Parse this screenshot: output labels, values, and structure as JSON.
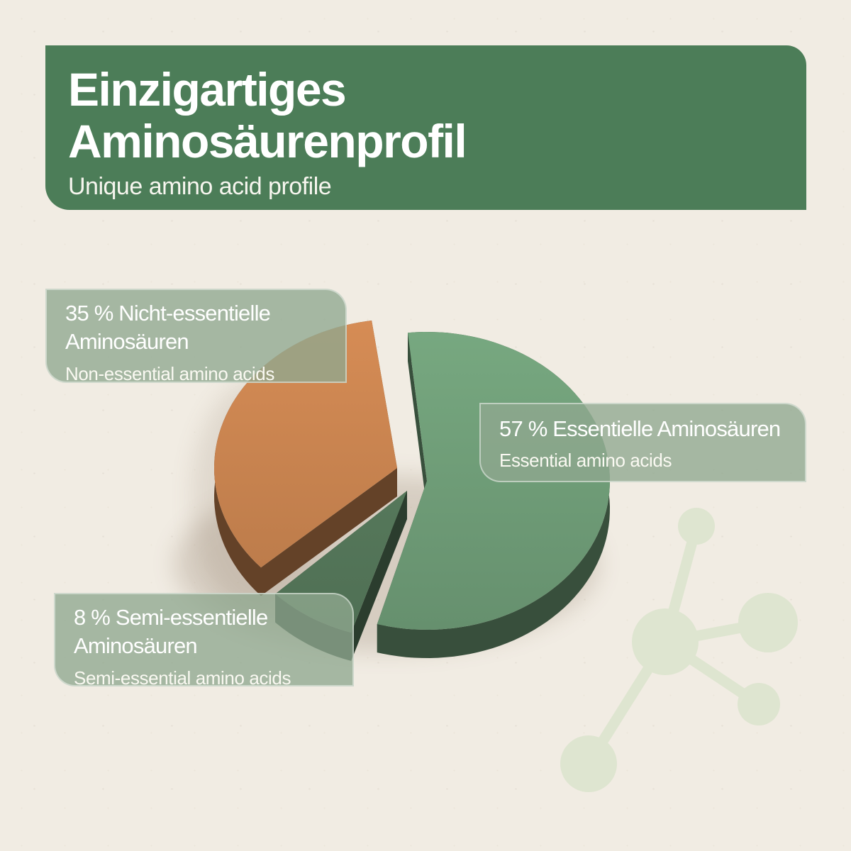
{
  "page": {
    "background_color": "#f1ece3",
    "accent_green": "#4c7d58",
    "label_box_color": "#93ab94",
    "watermark_color": "#dee5d0"
  },
  "header": {
    "title_line1": "Einzigartiges",
    "title_line2": "Aminosäurenprofil",
    "subtitle": "Unique amino acid profile"
  },
  "chart_data": {
    "type": "pie",
    "style": "3d-exploded",
    "title": "Einzigartiges Aminosäurenprofil / Unique amino acid profile",
    "unit": "%",
    "legend_position": "floating-labels",
    "slices": [
      {
        "id": "essential",
        "label": "Essentielle Aminosäuren",
        "label_en": "Essential amino acids",
        "value": 57,
        "color": "#6f9d78"
      },
      {
        "id": "semi-essential",
        "label": "Semi-essentielle Aminosäuren",
        "label_en": "Semi-essential amino acids",
        "value": 8,
        "color": "#56795b"
      },
      {
        "id": "non-essential",
        "label": "Nicht-essentielle Aminosäuren",
        "label_en": "Non-essential amino acids",
        "value": 35,
        "color": "#c8834f"
      }
    ]
  },
  "labels": [
    {
      "id": "non-essential",
      "line1": "35 % Nicht-essentielle",
      "line2": "Aminosäuren",
      "sub": "Non-essential amino acids"
    },
    {
      "id": "essential",
      "line1": "57 % Essentielle Aminosäuren",
      "line2": "",
      "sub": "Essential amino acids"
    },
    {
      "id": "semi-essential",
      "line1": "8 % Semi-essentielle",
      "line2": "Aminosäuren",
      "sub": "Semi-essential amino acids"
    }
  ],
  "watermark": {
    "icon": "molecule-icon",
    "color": "#dee5d0"
  }
}
